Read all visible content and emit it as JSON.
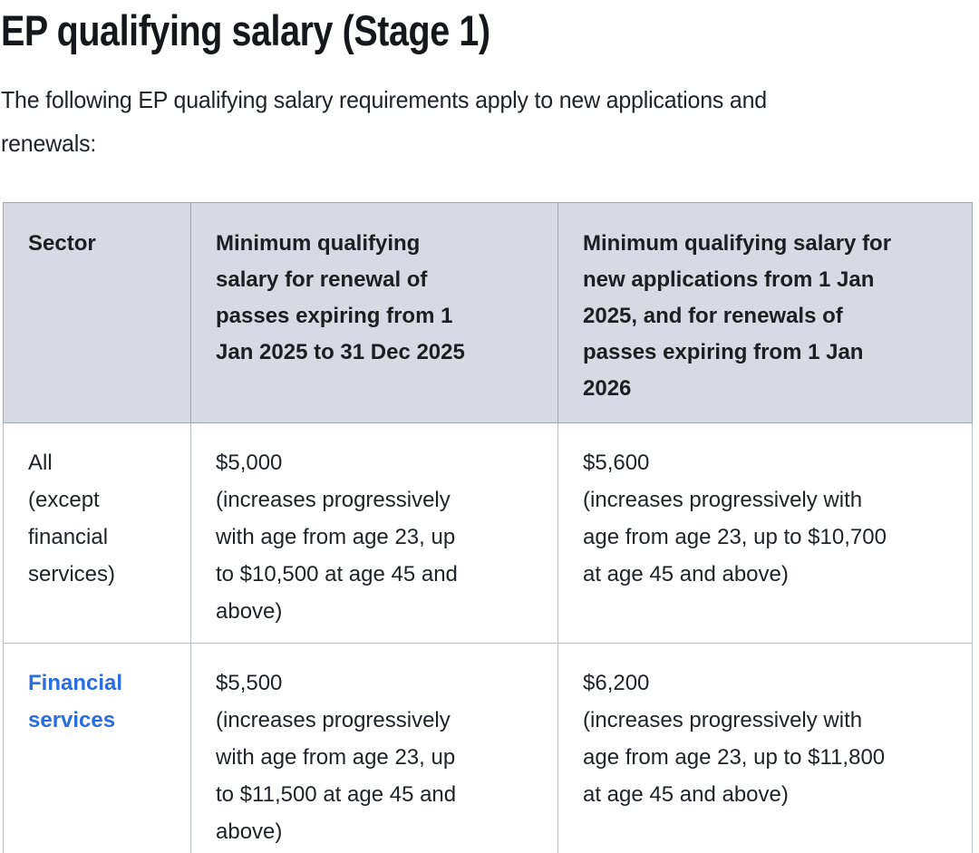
{
  "page": {
    "title": "EP qualifying salary (Stage 1)",
    "intro": "The following EP qualifying salary requirements apply to new applications and\nrenewals:"
  },
  "colors": {
    "link_blue": "#2b6cdf",
    "table_header_bg": "#d7dae2",
    "table_border": "#b7bfca",
    "text": "#1f2227"
  },
  "table": {
    "headers": [
      "Sector",
      "Minimum qualifying\nsalary for renewal of\npasses expiring from 1\nJan 2025 to 31 Dec 2025",
      "Minimum qualifying salary for\nnew applications from 1 Jan\n2025, and for renewals of\npasses expiring from 1 Jan\n2026"
    ],
    "rows": [
      {
        "sector": "All\n(except\nfinancial\nservices)",
        "renewal_2025": "$5,000\n(increases progressively\nwith age from age 23, up\nto $10,500 at age 45 and\nabove)",
        "new_2025": "$5,600\n(increases progressively with\nage from age 23, up to $10,700\nat age 45 and above)"
      },
      {
        "sector_link": "Financial\nservices",
        "renewal_2025": "$5,500\n(increases progressively\nwith age from age 23, up\nto $11,500 at age 45 and\nabove)",
        "new_2025": "$6,200\n(increases progressively with\nage from age 23, up to $11,800\nat age 45 and above)"
      }
    ]
  }
}
